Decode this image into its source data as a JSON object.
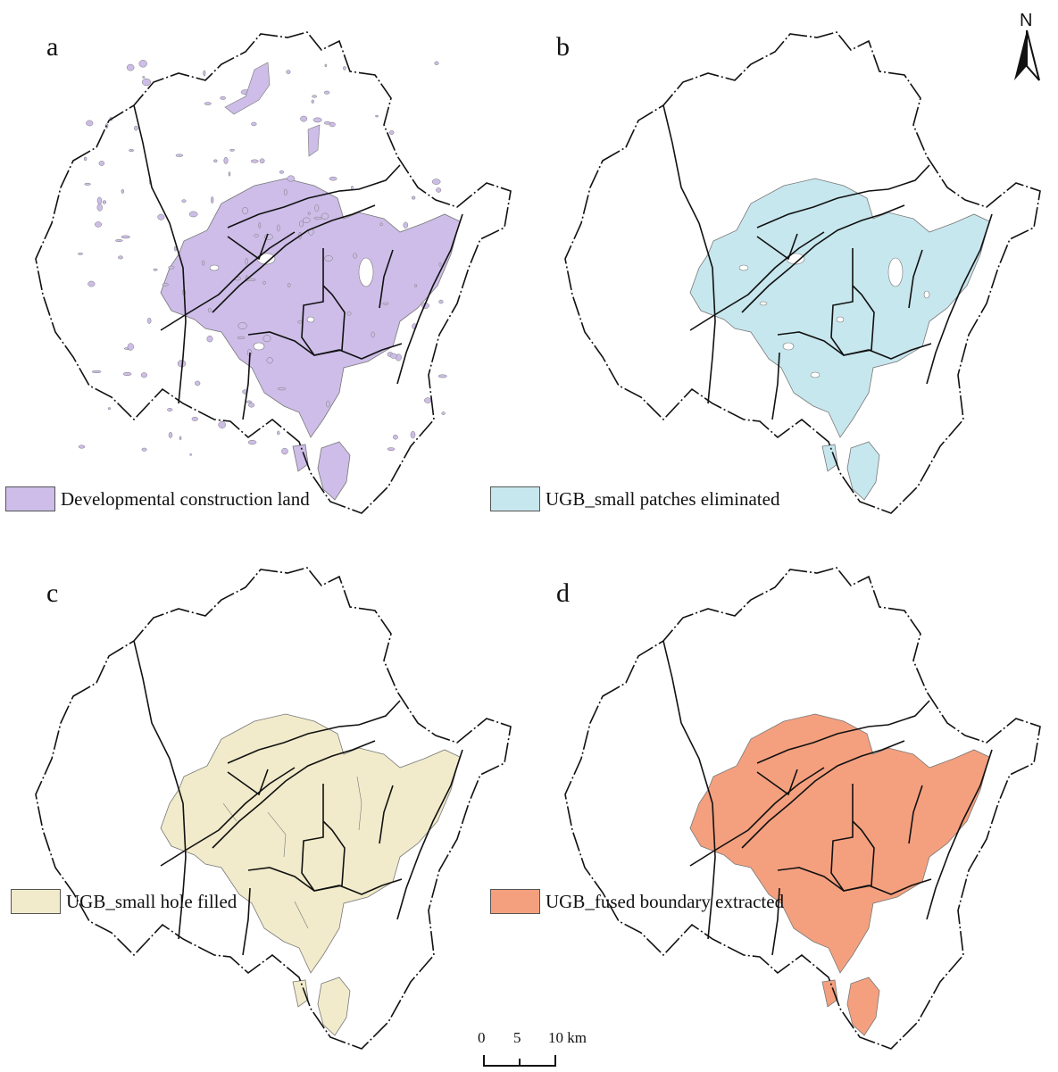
{
  "panels": [
    {
      "letter": "a",
      "legend": "Developmental construction land",
      "fill": "#CDBDE8",
      "style": "scatter"
    },
    {
      "letter": "b",
      "legend": "UGB_small patches eliminated",
      "fill": "#C7E7EE",
      "style": "merged"
    },
    {
      "letter": "c",
      "legend": "UGB_small hole filled",
      "fill": "#F1EBCB",
      "style": "filled"
    },
    {
      "letter": "d",
      "legend": "UGB_fused boundary extracted",
      "fill": "#F4A07F",
      "style": "fused"
    }
  ],
  "north_arrow": {
    "label": "N"
  },
  "scale_bar": {
    "ticks": [
      "0",
      "5",
      "10 km"
    ]
  },
  "colors": {
    "outline": "#111111",
    "patch_stroke": "#777777"
  }
}
